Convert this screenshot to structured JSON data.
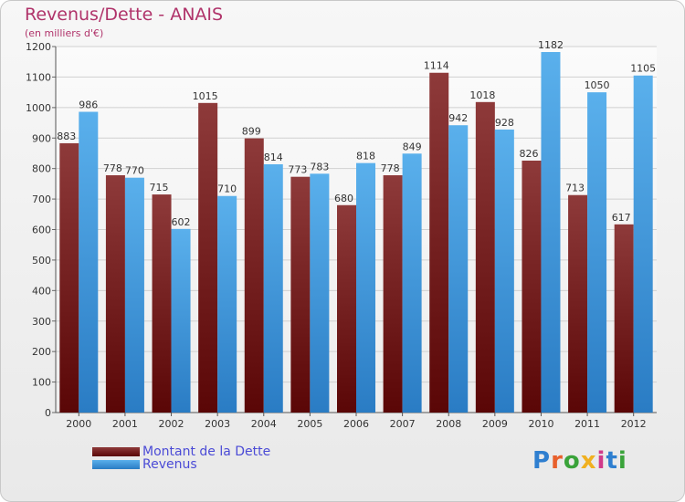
{
  "chart_data": {
    "type": "bar",
    "title": "Revenus/Dette - ANAIS",
    "subtitle": "(en milliers d'€)",
    "categories": [
      "2000",
      "2001",
      "2002",
      "2003",
      "2004",
      "2005",
      "2006",
      "2007",
      "2008",
      "2009",
      "2010",
      "2011",
      "2012"
    ],
    "series": [
      {
        "name": "Montant de la Dette",
        "color": "#7a1a1a",
        "values": [
          883,
          778,
          715,
          1015,
          899,
          773,
          680,
          778,
          1114,
          1018,
          826,
          713,
          617
        ]
      },
      {
        "name": "Revenus",
        "color": "#4aa3e4",
        "values": [
          986,
          770,
          602,
          710,
          814,
          783,
          818,
          849,
          942,
          928,
          1182,
          1050,
          1105
        ]
      }
    ],
    "ylim": [
      0,
      1200
    ],
    "yticks": [
      0,
      100,
      200,
      300,
      400,
      500,
      600,
      700,
      800,
      900,
      1000,
      1100,
      1200
    ],
    "grid": true,
    "legend": "bottom-left"
  },
  "logo": {
    "text": "Proxiti",
    "colors": [
      "#2f7fd0",
      "#e8602c",
      "#3aa33a",
      "#f0b020",
      "#d03a8a",
      "#2f7fd0",
      "#3aa33a"
    ]
  }
}
